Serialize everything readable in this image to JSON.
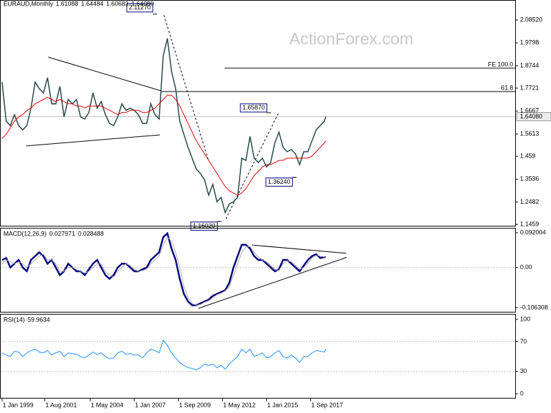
{
  "chart_data": [
    {
      "type": "line",
      "title": "EURAUD,Monthly",
      "ohlc": [
        1.61088,
        1.64484,
        1.60683,
        {
          "value": 1.6408,
          "label": "1.64080"
        }
      ],
      "watermark": "ActionForex.com",
      "x": [
        "1999-01-01",
        "1999-04-01",
        "1999-07-01",
        "1999-10-01",
        "2000-01-01",
        "2000-04-01",
        "2000-07-01",
        "2000-10-01",
        "2001-01-01",
        "2001-04-01",
        "2001-07-01",
        "2001-10-01",
        "2002-01-01",
        "2002-04-01",
        "2002-07-01",
        "2002-10-01",
        "2003-01-01",
        "2003-04-01",
        "2003-07-01",
        "2003-10-01",
        "2004-01-01",
        "2004-04-01",
        "2004-07-01",
        "2004-10-01",
        "2005-01-01",
        "2005-04-01",
        "2005-07-01",
        "2005-10-01",
        "2006-01-01",
        "2006-04-01",
        "2006-07-01",
        "2006-10-01",
        "2007-01-01",
        "2007-04-01",
        "2007-07-01",
        "2007-10-01",
        "2008-01-01",
        "2008-04-01",
        "2008-07-01",
        "2008-10-01",
        "2009-01-01",
        "2009-04-01",
        "2009-07-01",
        "2009-10-01",
        "2010-01-01",
        "2010-04-01",
        "2010-07-01",
        "2010-10-01",
        "2011-01-01",
        "2011-04-01",
        "2011-07-01",
        "2011-10-01",
        "2012-01-01",
        "2012-04-01",
        "2012-07-01",
        "2012-10-01",
        "2013-01-01",
        "2013-04-01",
        "2013-07-01",
        "2013-10-01",
        "2014-01-01",
        "2014-04-01",
        "2014-07-01",
        "2014-10-01",
        "2015-01-01",
        "2015-04-01",
        "2015-07-01",
        "2015-10-01",
        "2016-01-01",
        "2016-04-01",
        "2016-07-01",
        "2016-10-01",
        "2017-01-01",
        "2017-04-01",
        "2017-07-01",
        "2017-10-01",
        "2018-01-01",
        "2018-04-01",
        "2018-07-01",
        "2018-08-01"
      ],
      "xlim": [
        "1999-01-01",
        "2030-01-01"
      ],
      "xticks": [
        {
          "value": "1999-01-01",
          "label": "1 Jan 1999"
        },
        {
          "value": "2001-08-01",
          "label": "1 Aug 2001"
        },
        {
          "value": "2004-05-01",
          "label": "1 May 2004"
        },
        {
          "value": "2007-01-01",
          "label": "1 Jan 2007"
        },
        {
          "value": "2009-09-01",
          "label": "1 Sep 2009"
        },
        {
          "value": "2012-05-01",
          "label": "1 May 2012"
        },
        {
          "value": "2015-01-01",
          "label": "1 Jan 2015"
        },
        {
          "value": "2017-09-01",
          "label": "1 Sep 2017"
        }
      ],
      "ylim": [
        1.1396,
        2.1769
      ],
      "yticks": [
        {
          "value": 2.0852,
          "label": "2.08520"
        },
        1.9798,
        1.8744,
        1.7721,
        1.6667,
        1.5613,
        1.459,
        1.3536,
        1.2482,
        1.1459
      ],
      "series": [
        {
          "name": "EURAUD",
          "color": "#2f4f4f",
          "values": [
            1.8,
            1.62,
            1.6,
            1.65,
            1.6,
            1.58,
            1.6,
            1.68,
            1.8,
            1.77,
            1.75,
            1.82,
            1.7,
            1.7,
            1.78,
            1.64,
            1.72,
            1.7,
            1.72,
            1.64,
            1.63,
            1.66,
            1.75,
            1.68,
            1.71,
            1.65,
            1.61,
            1.6,
            1.64,
            1.7,
            1.67,
            1.68,
            1.67,
            1.65,
            1.61,
            1.61,
            1.7,
            1.65,
            1.63,
            1.92,
            2.0,
            1.85,
            1.77,
            1.62,
            1.56,
            1.5,
            1.45,
            1.4,
            1.38,
            1.35,
            1.28,
            1.33,
            1.25,
            1.27,
            1.2,
            1.24,
            1.25,
            1.27,
            1.45,
            1.44,
            1.55,
            1.45,
            1.43,
            1.45,
            1.41,
            1.43,
            1.52,
            1.57,
            1.5,
            1.48,
            1.49,
            1.47,
            1.42,
            1.48,
            1.48,
            1.53,
            1.58,
            1.6,
            1.62,
            1.6408
          ]
        },
        {
          "name": "MA",
          "color": "#e00000",
          "values": [
            1.54,
            1.56,
            1.59,
            1.62,
            1.64,
            1.65,
            1.67,
            1.68,
            1.7,
            1.71,
            1.72,
            1.73,
            1.72,
            1.71,
            1.72,
            1.71,
            1.7,
            1.7,
            1.69,
            1.69,
            1.68,
            1.69,
            1.69,
            1.69,
            1.69,
            1.68,
            1.67,
            1.66,
            1.65,
            1.66,
            1.66,
            1.67,
            1.67,
            1.67,
            1.66,
            1.66,
            1.67,
            1.68,
            1.7,
            1.72,
            1.74,
            1.74,
            1.72,
            1.69,
            1.65,
            1.61,
            1.57,
            1.53,
            1.5,
            1.47,
            1.44,
            1.41,
            1.38,
            1.35,
            1.32,
            1.3,
            1.29,
            1.28,
            1.29,
            1.31,
            1.34,
            1.37,
            1.39,
            1.41,
            1.42,
            1.42,
            1.43,
            1.44,
            1.44,
            1.45,
            1.45,
            1.45,
            1.45,
            1.45,
            1.45,
            1.46,
            1.48,
            1.5,
            1.52,
            1.53
          ]
        }
      ],
      "levels": [
        {
          "label": "FE 100.0",
          "value": 1.8638
        },
        {
          "label": "61.8",
          "value": 1.7563
        }
      ],
      "last_price": {
        "value": 1.6408,
        "label": "1.64080"
      },
      "annotations": [
        {
          "value": 2.1127,
          "label": "2.11270"
        },
        {
          "value": 1.6587,
          "label": "1.65870"
        },
        {
          "value": 1.3624,
          "label": "1.36240"
        },
        {
          "value": 1.1602,
          "label": "1.16020"
        }
      ]
    },
    {
      "type": "line",
      "title": "MACD(12,26,9)",
      "readout": [
        0.027971,
        0.028488
      ],
      "ylim": [
        -0.1172,
        0.1047
      ],
      "yticks": [
        0.092004,
        {
          "value": 0,
          "label": "0.00"
        },
        -0.106308
      ],
      "series": [
        {
          "name": "MACD",
          "color": "#00007f",
          "values": [
            0.02,
            0.025,
            0.0,
            0.01,
            0.02,
            0.0,
            -0.01,
            0.02,
            0.03,
            0.04,
            0.03,
            0.01,
            0.02,
            0.0,
            -0.02,
            -0.01,
            0.01,
            0.0,
            -0.01,
            -0.01,
            -0.02,
            -0.005,
            0.01,
            0.02,
            0.0,
            -0.02,
            -0.03,
            -0.02,
            0.0,
            0.01,
            0.01,
            0.0,
            -0.01,
            -0.01,
            -0.005,
            0.0,
            0.02,
            0.03,
            0.04,
            0.08,
            0.09,
            0.05,
            0.02,
            -0.03,
            -0.07,
            -0.09,
            -0.1,
            -0.1,
            -0.095,
            -0.09,
            -0.085,
            -0.075,
            -0.07,
            -0.065,
            -0.06,
            -0.04,
            0.0,
            0.03,
            0.06,
            0.06,
            0.05,
            0.03,
            0.02,
            0.02,
            0.01,
            0.0,
            -0.01,
            -0.005,
            0.02,
            0.02,
            0.01,
            0.0,
            -0.01,
            0.005,
            0.02,
            0.03,
            0.035,
            0.025,
            0.027,
            0.028
          ]
        },
        {
          "name": "Signal",
          "color": "#a9a9a9",
          "values": [
            0.01,
            0.02,
            0.015,
            0.01,
            0.015,
            0.01,
            0.0,
            0.01,
            0.02,
            0.03,
            0.035,
            0.02,
            0.02,
            0.01,
            -0.01,
            -0.01,
            0.0,
            0.0,
            -0.005,
            -0.01,
            -0.015,
            -0.01,
            0.0,
            0.01,
            0.01,
            -0.01,
            -0.02,
            -0.025,
            -0.01,
            0.0,
            0.01,
            0.005,
            -0.005,
            -0.01,
            -0.008,
            -0.004,
            0.01,
            0.02,
            0.03,
            0.06,
            0.08,
            0.07,
            0.04,
            0.0,
            -0.05,
            -0.08,
            -0.095,
            -0.1,
            -0.098,
            -0.092,
            -0.088,
            -0.08,
            -0.072,
            -0.068,
            -0.062,
            -0.05,
            -0.02,
            0.01,
            0.04,
            0.055,
            0.055,
            0.04,
            0.028,
            0.02,
            0.015,
            0.005,
            -0.005,
            -0.008,
            0.01,
            0.018,
            0.015,
            0.005,
            -0.005,
            0.0,
            0.012,
            0.025,
            0.032,
            0.03,
            0.028,
            0.028
          ]
        }
      ]
    },
    {
      "type": "line",
      "title": "RSI(14)",
      "readout": 59.9634,
      "ylim": [
        -5.6,
        107.4
      ],
      "yticks": [
        100,
        70,
        30,
        0
      ],
      "levels": [
        70,
        30
      ],
      "series": [
        {
          "name": "RSI",
          "color": "#1e90ff",
          "values": [
            55,
            52,
            50,
            57,
            56,
            50,
            55,
            58,
            60,
            56,
            55,
            58,
            52,
            55,
            57,
            50,
            55,
            54,
            53,
            50,
            48,
            52,
            56,
            53,
            55,
            50,
            47,
            48,
            55,
            57,
            53,
            54,
            52,
            52,
            48,
            55,
            60,
            58,
            55,
            72,
            65,
            55,
            48,
            42,
            38,
            35,
            34,
            32,
            35,
            40,
            38,
            40,
            35,
            38,
            33,
            40,
            45,
            50,
            60,
            55,
            60,
            50,
            52,
            55,
            48,
            50,
            55,
            58,
            50,
            48,
            52,
            48,
            42,
            50,
            50,
            55,
            58,
            57,
            56,
            59.9634
          ]
        }
      ]
    }
  ]
}
